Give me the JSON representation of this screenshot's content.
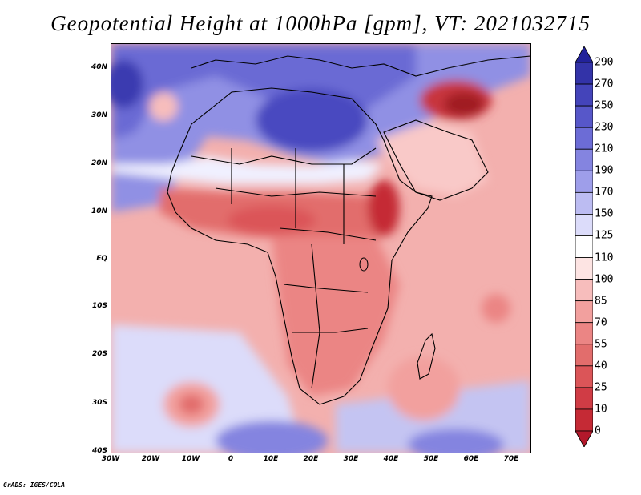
{
  "title": "Geopotential Height at 1000hPa [gpm], VT: 2021032715",
  "footer": "GrADS: IGES/COLA",
  "map": {
    "variable": "Geopotential Height",
    "level": "1000hPa",
    "units": "gpm",
    "valid_time": "2021032715",
    "lon_range": [
      -30,
      75
    ],
    "lat_range": [
      -40,
      45
    ]
  },
  "axes": {
    "lat_ticks": [
      "40N",
      "30N",
      "20N",
      "10N",
      "EQ",
      "10S",
      "20S",
      "30S",
      "40S"
    ],
    "lon_ticks": [
      "30W",
      "20W",
      "10W",
      "0",
      "10E",
      "20E",
      "30E",
      "40E",
      "50E",
      "60E",
      "70E"
    ]
  },
  "colorbar": {
    "levels": [
      "0",
      "10",
      "25",
      "40",
      "55",
      "70",
      "85",
      "100",
      "110",
      "125",
      "150",
      "170",
      "190",
      "210",
      "230",
      "250",
      "270",
      "290"
    ],
    "colors": [
      "#b2182b",
      "#c52a35",
      "#d03c45",
      "#db5558",
      "#e26d6c",
      "#eb8584",
      "#f2a09e",
      "#f7bdbc",
      "#fde4e3",
      "#ffffff",
      "#dcdcfa",
      "#bcbcf2",
      "#9e9eea",
      "#8484e0",
      "#6c6cd6",
      "#5757c9",
      "#4444ba",
      "#3333a8",
      "#22229a"
    ]
  }
}
